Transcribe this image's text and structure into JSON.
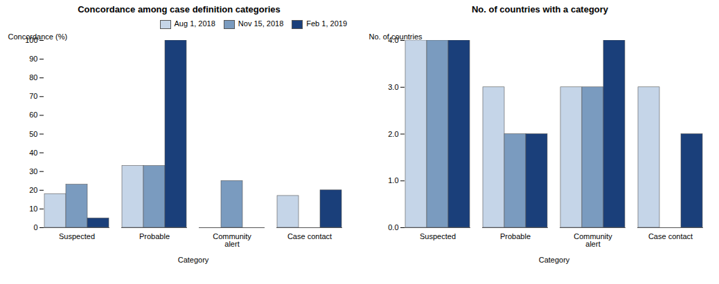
{
  "chart_data": [
    {
      "type": "bar",
      "title": "Concordance among case definition categories",
      "xlabel": "Category",
      "ylabel": "Concordance (%)",
      "categories": [
        "Suspected",
        "Probable",
        "Community\nalert",
        "Case contact"
      ],
      "series": [
        {
          "name": "Aug 1, 2018",
          "color": "#c5d5e8",
          "values": [
            18,
            33,
            0,
            17
          ]
        },
        {
          "name": "Nov 15, 2018",
          "color": "#7a9bbf",
          "values": [
            23,
            33,
            25,
            0
          ]
        },
        {
          "name": "Feb 1, 2019",
          "color": "#1a3f7a",
          "values": [
            5,
            100,
            0,
            20
          ]
        }
      ],
      "ylim": [
        0,
        100
      ],
      "yticks": [
        0,
        10,
        20,
        30,
        40,
        50,
        60,
        70,
        80,
        90,
        100
      ],
      "legend": "upper right"
    },
    {
      "type": "bar",
      "title": "No. of countries with a category",
      "xlabel": "Category",
      "ylabel": "No. of countries",
      "categories": [
        "Suspected",
        "Probable",
        "Community\nalert",
        "Case contact"
      ],
      "series": [
        {
          "name": "Aug 1, 2018",
          "color": "#c5d5e8",
          "values": [
            4,
            3,
            3,
            3
          ]
        },
        {
          "name": "Nov 15, 2018",
          "color": "#7a9bbf",
          "values": [
            4,
            2,
            3,
            0
          ]
        },
        {
          "name": "Feb 1, 2019",
          "color": "#1a3f7a",
          "values": [
            4,
            2,
            4,
            2
          ]
        }
      ],
      "ylim": [
        0,
        4
      ],
      "yticks": [
        0,
        1,
        2,
        3,
        4
      ]
    }
  ]
}
